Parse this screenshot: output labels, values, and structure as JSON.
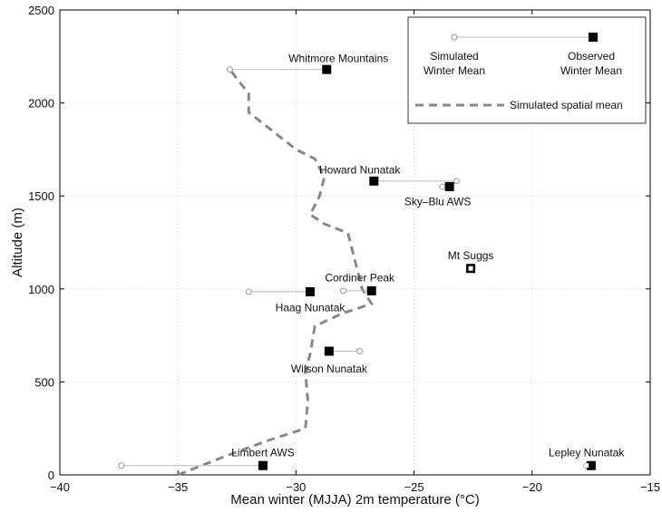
{
  "chart_data": {
    "type": "scatter",
    "xlabel": "Mean winter (MJJA) 2m temperature (°C)",
    "ylabel": "Altitude (m)",
    "xlim": [
      -40,
      -15
    ],
    "ylim": [
      0,
      2500
    ],
    "xticks": [
      -40,
      -35,
      -30,
      -25,
      -20,
      -15
    ],
    "yticks": [
      0,
      500,
      1000,
      1500,
      2000,
      2500
    ],
    "grid": true,
    "legend": {
      "position": "top-right",
      "simulated_label_line1": "Simulated",
      "simulated_label_line2": "Winter Mean",
      "observed_label_line1": "Observed",
      "observed_label_line2": "Winter Mean",
      "spatial_mean_label": "Simulated spatial mean"
    },
    "stations": [
      {
        "name": "Whitmore Mountains",
        "altitude": 2180,
        "simulated": -32.8,
        "observed": -28.7
      },
      {
        "name": "Howard Nunatak",
        "altitude": 1580,
        "simulated": -23.2,
        "observed": -26.7
      },
      {
        "name": "Sky–Blu AWS",
        "altitude": 1550,
        "simulated": -23.8,
        "observed": -23.5
      },
      {
        "name": "Mt Suggs",
        "altitude": 1110,
        "simulated": -22.6,
        "observed": -22.6
      },
      {
        "name": "Cordiner Peak",
        "altitude": 990,
        "simulated": -28.0,
        "observed": -26.8
      },
      {
        "name": "Haag Nunatak",
        "altitude": 985,
        "simulated": -32.0,
        "observed": -29.4
      },
      {
        "name": "Wilson Nunatak",
        "altitude": 665,
        "simulated": -27.3,
        "observed": -28.6
      },
      {
        "name": "Limbert AWS",
        "altitude": 50,
        "simulated": -37.4,
        "observed": -31.4
      },
      {
        "name": "Lepley Nunatak",
        "altitude": 50,
        "simulated": -17.7,
        "observed": -17.5
      }
    ],
    "spatial_mean": {
      "name": "Simulated spatial mean",
      "x": [
        -35.0,
        -33.0,
        -31.3,
        -29.6,
        -29.5,
        -29.6,
        -29.4,
        -29.2,
        -28.0,
        -26.8,
        -27.2,
        -27.4,
        -27.6,
        -27.7,
        -27.8,
        -28.8,
        -29.4,
        -29.0,
        -28.8,
        -29.2,
        -30.0,
        -31.0,
        -32.0,
        -32.0,
        -32.5,
        -32.8
      ],
      "y": [
        0,
        100,
        180,
        250,
        400,
        550,
        650,
        800,
        870,
        920,
        1000,
        1100,
        1200,
        1250,
        1300,
        1350,
        1400,
        1500,
        1600,
        1700,
        1750,
        1850,
        1950,
        2050,
        2130,
        2180
      ]
    },
    "label_colors": {
      "line": "#bbbbbb",
      "spatial": "#888888",
      "marker": "#000000"
    }
  }
}
